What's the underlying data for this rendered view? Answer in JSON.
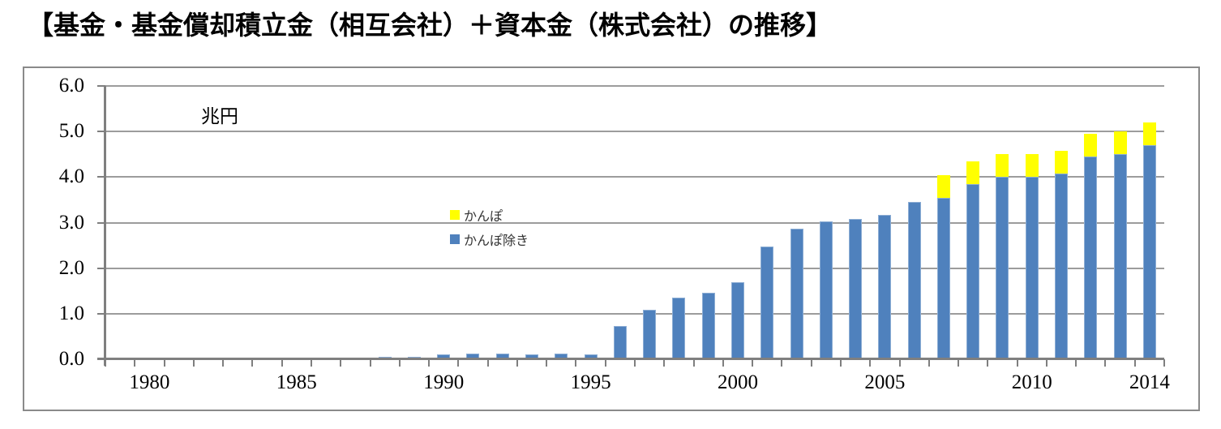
{
  "title": "【基金・基金償却積立金（相互会社）＋資本金（株式会社）の推移】",
  "colors": {
    "bar_blue": "#4F81BD",
    "bar_yellow": "#FFFF00",
    "gridline": "#9C9C9C",
    "axis": "#7F7F7F",
    "frame_border": "#8A8A8A",
    "background": "#FFFFFF"
  },
  "chart_data": {
    "type": "bar",
    "stacked": true,
    "unit_label": "兆円",
    "ylim": [
      0,
      6
    ],
    "grid": true,
    "y_tick_labels": [
      "6.0",
      "5.0",
      "4.0",
      "3.0",
      "2.0",
      "1.0",
      "0.0"
    ],
    "x_tick_labels": [
      "1980",
      "1985",
      "1990",
      "1995",
      "2000",
      "2005",
      "2010",
      "2014"
    ],
    "years": [
      1979,
      1980,
      1981,
      1982,
      1983,
      1984,
      1985,
      1986,
      1987,
      1988,
      1989,
      1990,
      1991,
      1992,
      1993,
      1994,
      1995,
      1996,
      1997,
      1998,
      1999,
      2000,
      2001,
      2002,
      2003,
      2004,
      2005,
      2006,
      2007,
      2008,
      2009,
      2010,
      2011,
      2012,
      2013,
      2014
    ],
    "series": [
      {
        "name": "かんぽ除き",
        "color": "#4F81BD",
        "values": [
          0,
          0,
          0,
          0,
          0,
          0,
          0,
          0,
          0,
          0.05,
          0.05,
          0.1,
          0.12,
          0.12,
          0.1,
          0.12,
          0.1,
          0.73,
          1.08,
          1.35,
          1.46,
          1.69,
          2.48,
          2.86,
          3.02,
          3.08,
          3.17,
          3.45,
          3.55,
          3.85,
          4.0,
          4.0,
          4.08,
          4.45,
          4.5,
          4.7
        ]
      },
      {
        "name": "かんぽ",
        "color": "#FFFF00",
        "values": [
          0,
          0,
          0,
          0,
          0,
          0,
          0,
          0,
          0,
          0,
          0,
          0,
          0,
          0,
          0,
          0,
          0,
          0,
          0,
          0,
          0,
          0,
          0,
          0,
          0,
          0,
          0,
          0,
          0.5,
          0.5,
          0.5,
          0.5,
          0.5,
          0.5,
          0.5,
          0.5
        ]
      }
    ],
    "legend": {
      "position": "inside-plot-left-center",
      "entries": [
        {
          "label": "かんぽ",
          "color": "#FFFF00"
        },
        {
          "label": "かんぽ除き",
          "color": "#4F81BD"
        }
      ]
    }
  }
}
